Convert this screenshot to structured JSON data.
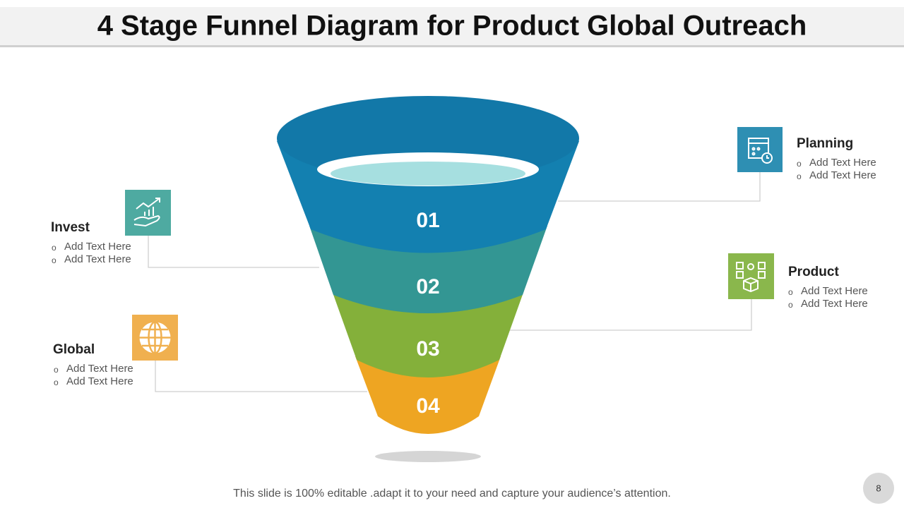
{
  "header": {
    "title": "4 Stage Funnel Diagram for Product Global Outreach"
  },
  "stages": [
    "01",
    "02",
    "03",
    "04"
  ],
  "callouts": [
    {
      "title": "Planning",
      "items": [
        "Add Text Here",
        "Add Text Here"
      ]
    },
    {
      "title": "Invest",
      "items": [
        "Add Text Here",
        "Add Text Here"
      ]
    },
    {
      "title": "Product",
      "items": [
        "Add Text Here",
        "Add Text Here"
      ]
    },
    {
      "title": "Global",
      "items": [
        "Add Text Here",
        "Add Text Here"
      ]
    }
  ],
  "footer": {
    "note": "This slide is 100% editable .adapt it to your need and capture your audience’s attention.",
    "page": "8"
  }
}
